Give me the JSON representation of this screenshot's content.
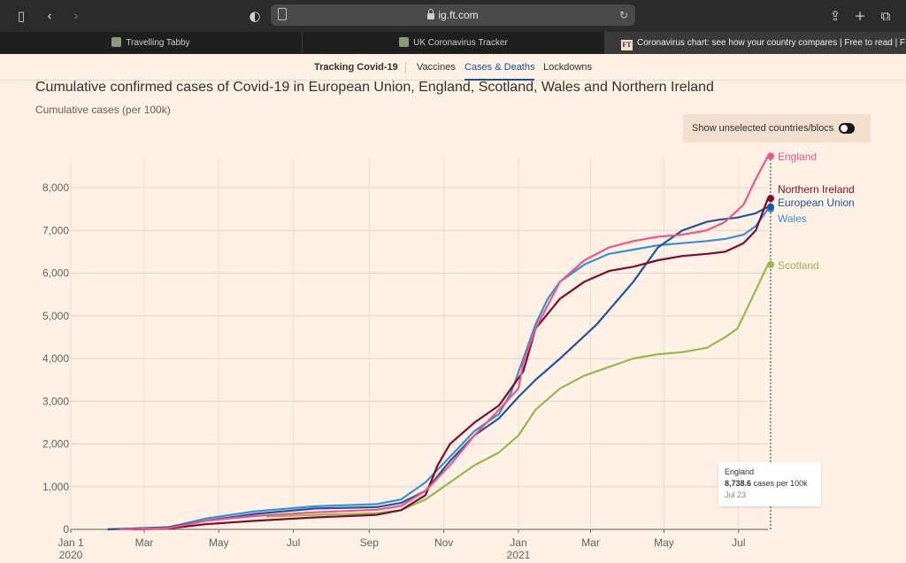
{
  "browser": {
    "url": "ig.ft.com",
    "tabs": [
      {
        "title": "Travelling Tabby"
      },
      {
        "title": "UK Coronavirus Tracker"
      },
      {
        "title": "Coronavirus chart: see how your country compares | Free to read | Fi...",
        "favicon_text": "FT"
      }
    ]
  },
  "nav": {
    "section": "Tracking Covid-19",
    "items": [
      "Vaccines",
      "Cases & Deaths",
      "Lockdowns"
    ],
    "active": "Cases & Deaths"
  },
  "toggle": {
    "label": "Show unselected countries/blocs",
    "on": true
  },
  "tooltip": {
    "series": "England",
    "value": "8,738.6",
    "unit": "cases per 100k",
    "date": "Jul 23"
  },
  "colors": {
    "england": "#e8588a",
    "northern_ireland": "#7d0b2f",
    "european_union": "#1f559a",
    "wales": "#3a8fd0",
    "scotland": "#96b84f"
  },
  "chart_data": {
    "type": "line",
    "title": "Cumulative confirmed cases of Covid-19 in European Union, England, Scotland, Wales and Northern Ireland",
    "ylabel": "Cumulative cases (per 100k)",
    "xlim": [
      0,
      570
    ],
    "ylim": [
      0,
      8000
    ],
    "y_ticks": [
      0,
      1000,
      2000,
      3000,
      4000,
      5000,
      6000,
      7000,
      8000
    ],
    "y_tick_labels": [
      "0",
      "1,000",
      "2,000",
      "3,000",
      "4,000",
      "5,000",
      "6,000",
      "7,000",
      "8,000"
    ],
    "x_ticks": [
      0,
      60,
      121,
      182,
      244,
      305,
      366,
      425,
      485,
      546
    ],
    "x_tick_labels": [
      [
        "Jan 1",
        "2020"
      ],
      [
        "Mar"
      ],
      [
        "May"
      ],
      [
        "Jul"
      ],
      [
        "Sep"
      ],
      [
        "Nov"
      ],
      [
        "Jan",
        "2021"
      ],
      [
        "Mar"
      ],
      [
        "May"
      ],
      [
        "Jul"
      ]
    ],
    "series": [
      {
        "name": "European Union",
        "key": "european_union",
        "x": [
          30,
          80,
          110,
          150,
          200,
          250,
          270,
          290,
          310,
          330,
          350,
          366,
          380,
          400,
          430,
          460,
          480,
          500,
          520,
          530,
          545,
          560,
          570
        ],
        "y": [
          0,
          50,
          200,
          360,
          490,
          520,
          620,
          900,
          1600,
          2200,
          2600,
          3100,
          3500,
          4000,
          4800,
          5800,
          6600,
          7000,
          7200,
          7250,
          7300,
          7400,
          7550
        ]
      },
      {
        "name": "England",
        "key": "england",
        "x": [
          40,
          80,
          110,
          150,
          200,
          250,
          270,
          290,
          310,
          330,
          350,
          366,
          370,
          380,
          400,
          420,
          440,
          460,
          480,
          500,
          520,
          535,
          550,
          560,
          570
        ],
        "y": [
          0,
          30,
          200,
          310,
          400,
          460,
          550,
          900,
          1500,
          2200,
          2800,
          3300,
          3900,
          4700,
          5800,
          6300,
          6600,
          6750,
          6850,
          6900,
          7000,
          7200,
          7600,
          8200,
          8738.6
        ]
      },
      {
        "name": "Northern Ireland",
        "key": "northern_ireland",
        "x": [
          50,
          80,
          110,
          150,
          200,
          250,
          270,
          290,
          300,
          310,
          330,
          350,
          360,
          370,
          380,
          400,
          420,
          440,
          460,
          480,
          500,
          520,
          535,
          550,
          560,
          570
        ],
        "y": [
          0,
          20,
          120,
          200,
          280,
          340,
          450,
          800,
          1500,
          2000,
          2500,
          2900,
          3300,
          3700,
          4700,
          5400,
          5800,
          6050,
          6150,
          6300,
          6400,
          6450,
          6500,
          6700,
          7000,
          7748
        ]
      },
      {
        "name": "Wales",
        "key": "wales",
        "x": [
          30,
          80,
          110,
          150,
          200,
          250,
          270,
          290,
          310,
          330,
          350,
          360,
          370,
          380,
          390,
          400,
          420,
          440,
          460,
          480,
          500,
          520,
          535,
          550,
          560,
          570
        ],
        "y": [
          0,
          50,
          250,
          420,
          540,
          590,
          700,
          1100,
          1700,
          2300,
          2700,
          3200,
          4000,
          4800,
          5400,
          5800,
          6200,
          6450,
          6550,
          6650,
          6700,
          6750,
          6800,
          6900,
          7100,
          7500
        ]
      },
      {
        "name": "Scotland",
        "key": "scotland",
        "x": [
          160,
          200,
          250,
          270,
          290,
          310,
          330,
          350,
          366,
          380,
          400,
          420,
          440,
          460,
          480,
          500,
          520,
          535,
          545,
          550,
          560,
          570
        ],
        "y": [
          300,
          340,
          380,
          450,
          700,
          1100,
          1500,
          1800,
          2200,
          2800,
          3300,
          3600,
          3800,
          4000,
          4100,
          4150,
          4250,
          4500,
          4700,
          5000,
          5600,
          6200
        ]
      }
    ],
    "annotations": [
      {
        "series": "England",
        "text": "England"
      },
      {
        "series": "Northern Ireland",
        "text": "Northern Ireland"
      },
      {
        "series": "European Union",
        "text": "European Union"
      },
      {
        "series": "Wales",
        "text": "Wales"
      },
      {
        "series": "Scotland",
        "text": "Scotland"
      }
    ]
  }
}
